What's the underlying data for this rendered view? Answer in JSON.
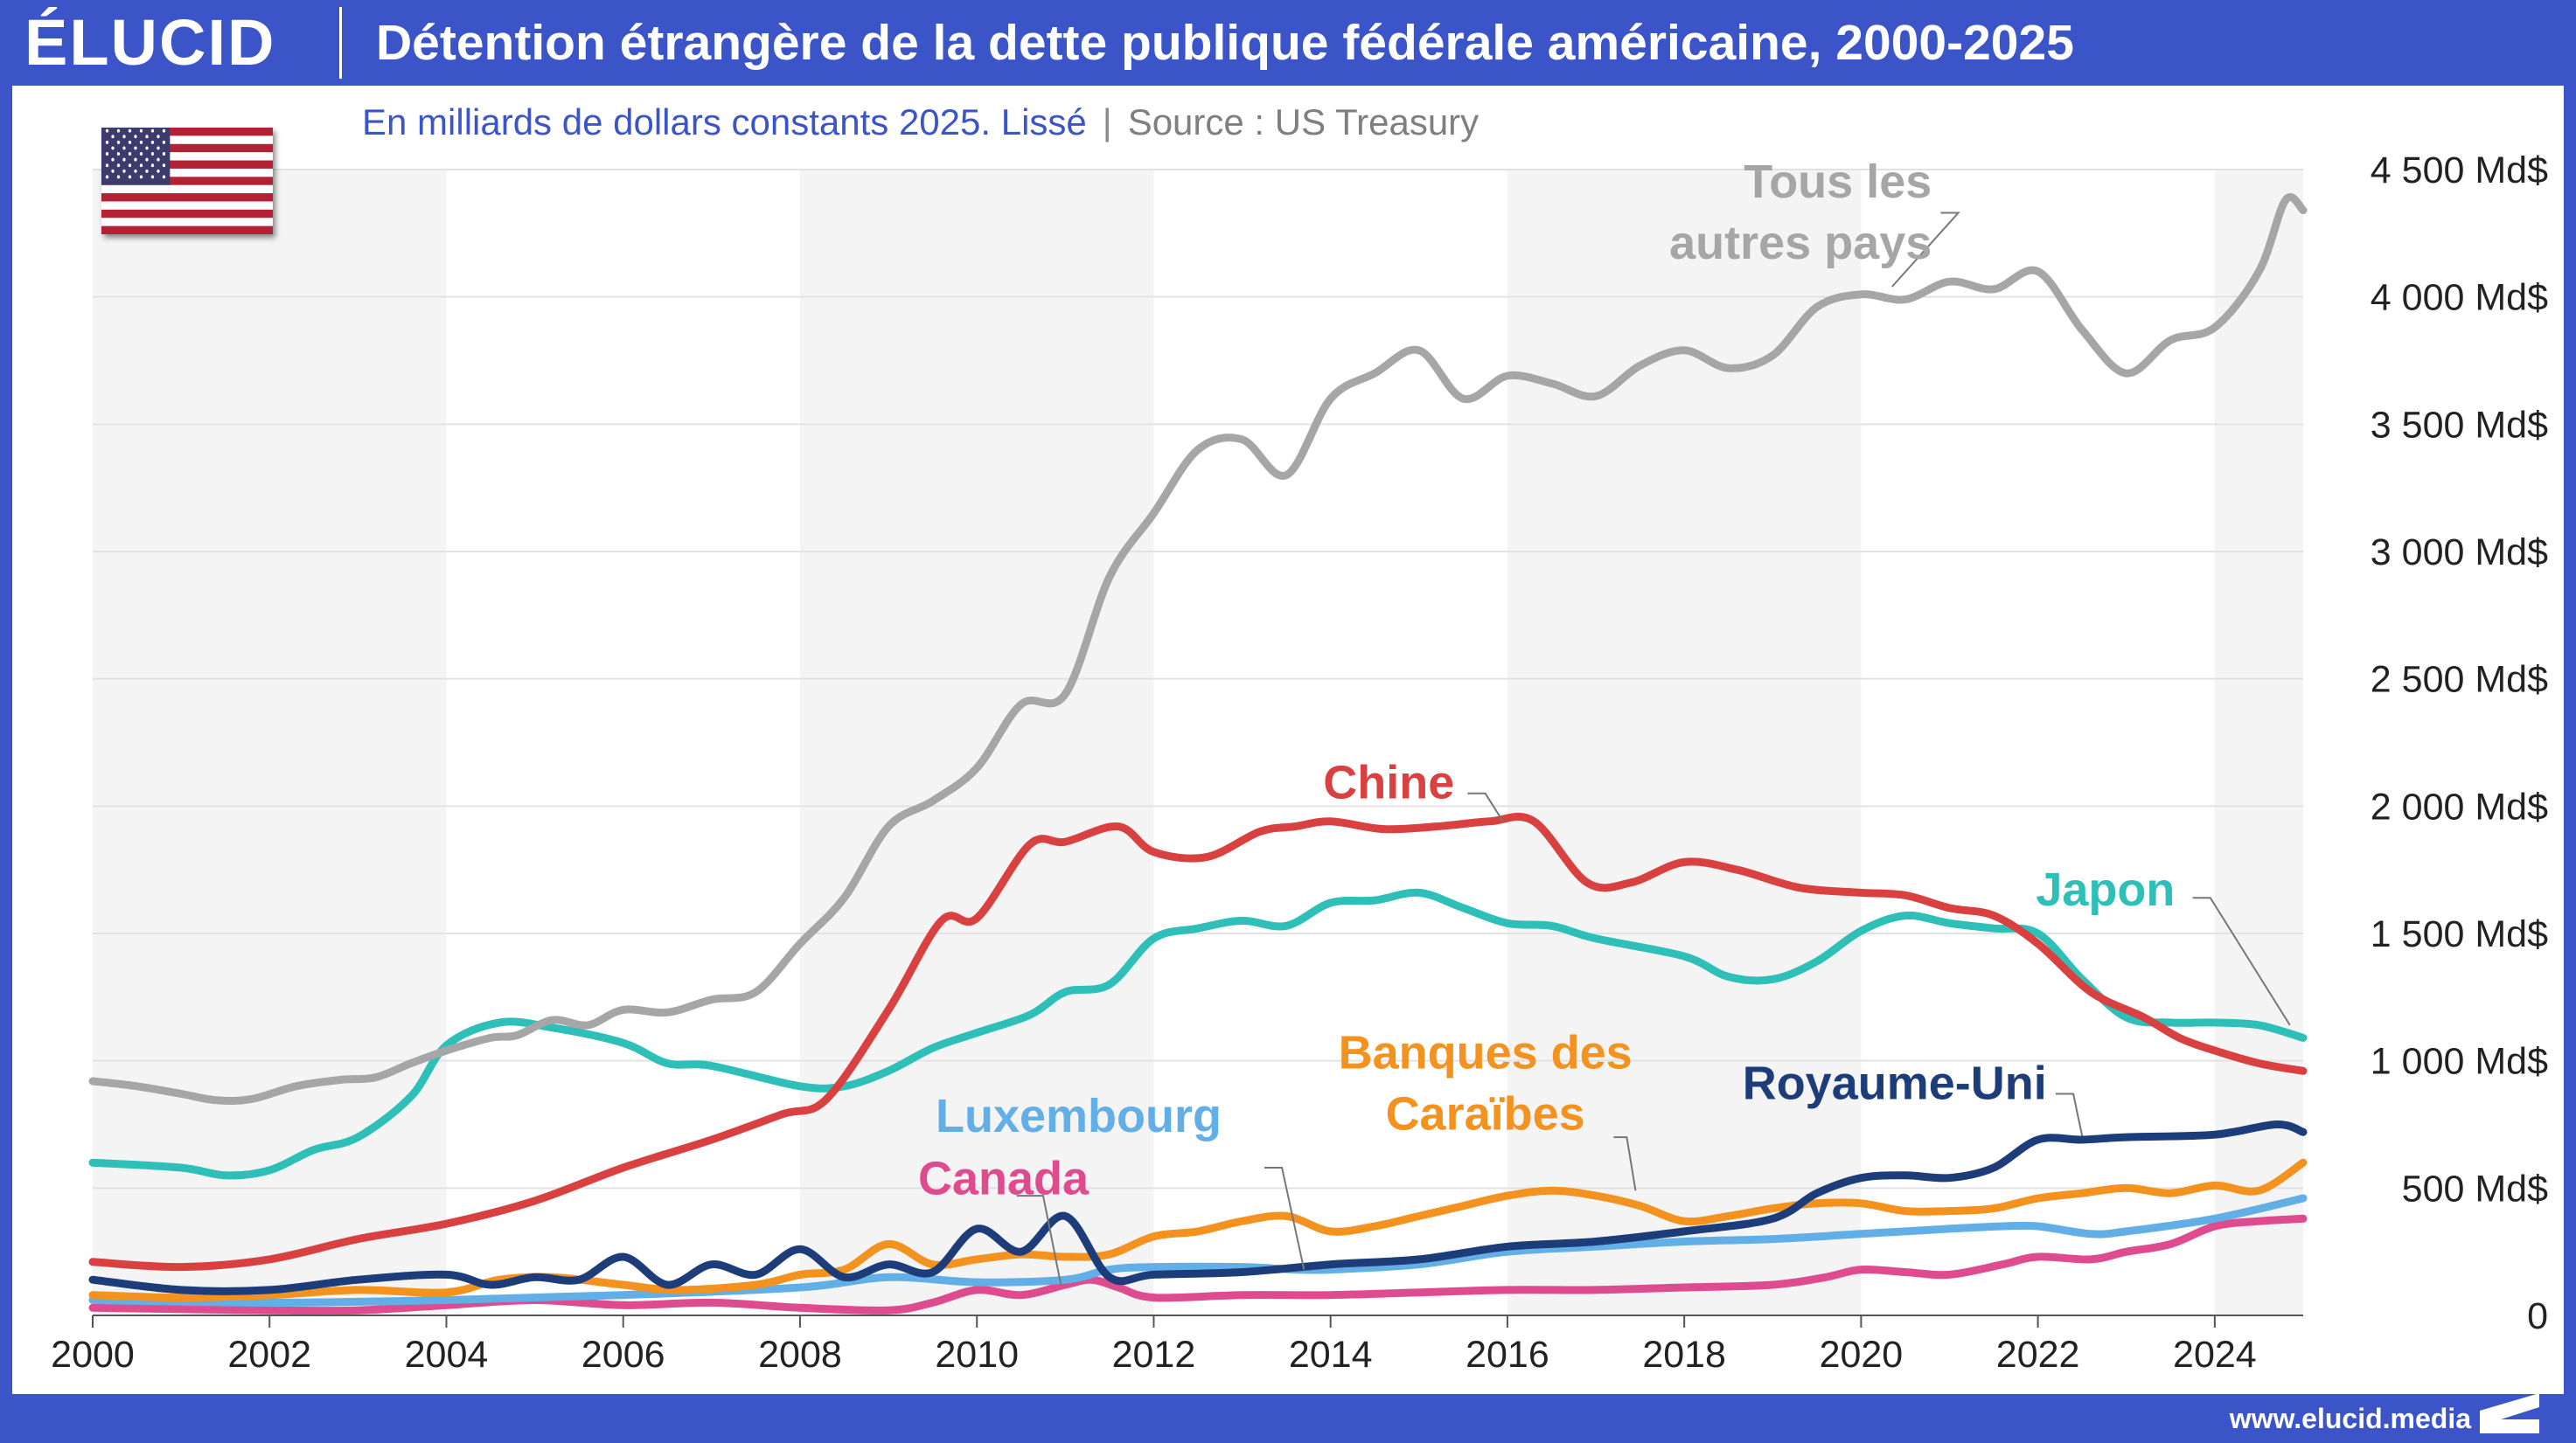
{
  "brand": {
    "logo_text": "ÉLUCID",
    "website": "www.elucid.media"
  },
  "header": {
    "title": "Détention étrangère de la dette publique fédérale américaine, 2000-2025",
    "subtitle": "En milliards de dollars constants 2025. Lissé",
    "source": "Source : US Treasury",
    "flag_icon": "us-flag-icon"
  },
  "colors": {
    "frame": "#3b55c8",
    "band": "#f4f4f4",
    "grid": "#e2e2e2",
    "axis_text": "#222222"
  },
  "chart_data": {
    "type": "line",
    "xlim": [
      2000,
      2025
    ],
    "ylim": [
      0,
      4500
    ],
    "grid": true,
    "x_ticks": [
      {
        "value": 2000,
        "label": "2000"
      },
      {
        "value": 2002,
        "label": "2002"
      },
      {
        "value": 2004,
        "label": "2004"
      },
      {
        "value": 2006,
        "label": "2006"
      },
      {
        "value": 2008,
        "label": "2008"
      },
      {
        "value": 2010,
        "label": "2010"
      },
      {
        "value": 2012,
        "label": "2012"
      },
      {
        "value": 2014,
        "label": "2014"
      },
      {
        "value": 2016,
        "label": "2016"
      },
      {
        "value": 2018,
        "label": "2018"
      },
      {
        "value": 2020,
        "label": "2020"
      },
      {
        "value": 2022,
        "label": "2022"
      },
      {
        "value": 2024,
        "label": "2024"
      }
    ],
    "y_ticks": [
      {
        "value": 0,
        "label": "0"
      },
      {
        "value": 500,
        "label": "500 Md$"
      },
      {
        "value": 1000,
        "label": "1 000 Md$"
      },
      {
        "value": 1500,
        "label": "1 500 Md$"
      },
      {
        "value": 2000,
        "label": "2 000 Md$"
      },
      {
        "value": 2500,
        "label": "2 500 Md$"
      },
      {
        "value": 3000,
        "label": "3 000 Md$"
      },
      {
        "value": 3500,
        "label": "3 500 Md$"
      },
      {
        "value": 4000,
        "label": "4 000 Md$"
      },
      {
        "value": 4500,
        "label": "4 500 Md$"
      }
    ],
    "shaded_bands": [
      [
        2000,
        2004
      ],
      [
        2008,
        2012
      ],
      [
        2016,
        2020
      ],
      [
        2024,
        2025
      ]
    ],
    "series": [
      {
        "name": "Tous les autres pays",
        "color": "#a6a6a6",
        "label_lines": [
          "Tous les",
          "autres pays"
        ],
        "x": [
          2000,
          2000.5,
          2001,
          2001.4,
          2001.8,
          2002.3,
          2002.8,
          2003.2,
          2003.6,
          2004,
          2004.5,
          2004.8,
          2005.2,
          2005.6,
          2006,
          2006.5,
          2007,
          2007.5,
          2008,
          2008.5,
          2009,
          2009.5,
          2010,
          2010.5,
          2011,
          2011.5,
          2012,
          2012.5,
          2013,
          2013.5,
          2014,
          2014.5,
          2015,
          2015.5,
          2016,
          2016.5,
          2017,
          2017.5,
          2018,
          2018.5,
          2019,
          2019.5,
          2020,
          2020.5,
          2021,
          2021.5,
          2022,
          2022.5,
          2023,
          2023.5,
          2024,
          2024.5,
          2024.8,
          2025
        ],
        "values": [
          920,
          900,
          870,
          845,
          850,
          900,
          925,
          935,
          990,
          1040,
          1090,
          1100,
          1160,
          1140,
          1200,
          1190,
          1240,
          1270,
          1460,
          1640,
          1920,
          2020,
          2150,
          2400,
          2440,
          2900,
          3150,
          3400,
          3440,
          3300,
          3600,
          3700,
          3790,
          3600,
          3690,
          3660,
          3610,
          3730,
          3790,
          3720,
          3770,
          3960,
          4010,
          3990,
          4060,
          4030,
          4100,
          3870,
          3700,
          3830,
          3880,
          4100,
          4380,
          4340
        ]
      },
      {
        "name": "Chine",
        "color": "#d94040",
        "x": [
          2000,
          2001,
          2002,
          2003,
          2004,
          2005,
          2006,
          2007,
          2007.8,
          2008.3,
          2009,
          2009.6,
          2010,
          2010.6,
          2011,
          2011.6,
          2012,
          2012.6,
          2013.2,
          2013.6,
          2014,
          2014.6,
          2015.2,
          2015.8,
          2016.3,
          2016.9,
          2017.4,
          2018,
          2018.6,
          2019.3,
          2020,
          2020.5,
          2021,
          2021.5,
          2022,
          2022.6,
          2023.2,
          2023.6,
          2024,
          2024.5,
          2025
        ],
        "values": [
          210,
          190,
          220,
          300,
          360,
          450,
          580,
          690,
          790,
          850,
          1200,
          1550,
          1560,
          1850,
          1860,
          1920,
          1820,
          1800,
          1900,
          1920,
          1940,
          1910,
          1920,
          1940,
          1940,
          1700,
          1700,
          1780,
          1750,
          1680,
          1660,
          1650,
          1600,
          1570,
          1460,
          1270,
          1170,
          1090,
          1040,
          990,
          960
        ]
      },
      {
        "name": "Japon",
        "color": "#2dbfb8",
        "x": [
          2000,
          2001,
          2001.5,
          2002,
          2002.5,
          2003,
          2003.6,
          2004,
          2004.6,
          2005.2,
          2006,
          2006.5,
          2007,
          2008,
          2008.5,
          2009,
          2009.5,
          2010,
          2010.6,
          2011,
          2011.5,
          2012,
          2012.5,
          2013,
          2013.5,
          2014,
          2014.5,
          2015,
          2015.5,
          2016,
          2016.5,
          2017,
          2018,
          2018.5,
          2019,
          2019.5,
          2020,
          2020.5,
          2021,
          2021.5,
          2022,
          2022.5,
          2023,
          2023.5,
          2024,
          2024.5,
          2025
        ],
        "values": [
          600,
          580,
          550,
          570,
          650,
          700,
          860,
          1060,
          1150,
          1130,
          1070,
          990,
          980,
          900,
          900,
          960,
          1050,
          1110,
          1180,
          1270,
          1300,
          1480,
          1520,
          1550,
          1530,
          1620,
          1630,
          1660,
          1600,
          1540,
          1530,
          1480,
          1410,
          1330,
          1320,
          1390,
          1510,
          1570,
          1540,
          1520,
          1500,
          1320,
          1170,
          1150,
          1150,
          1140,
          1090
        ]
      },
      {
        "name": "Royaume-Uni",
        "color": "#1c3c7a",
        "x": [
          2000,
          2001,
          2002,
          2003,
          2004,
          2004.5,
          2005,
          2005.5,
          2006,
          2006.5,
          2007,
          2007.5,
          2008,
          2008.5,
          2009,
          2009.5,
          2010,
          2010.5,
          2011,
          2011.5,
          2012,
          2013,
          2014,
          2015,
          2016,
          2017,
          2018,
          2019,
          2019.5,
          2020,
          2020.5,
          2021,
          2021.5,
          2022,
          2022.5,
          2023,
          2024,
          2024.7,
          2025
        ],
        "values": [
          140,
          100,
          100,
          140,
          160,
          120,
          150,
          140,
          230,
          120,
          200,
          160,
          260,
          150,
          200,
          170,
          340,
          250,
          390,
          150,
          160,
          170,
          200,
          220,
          270,
          290,
          330,
          380,
          480,
          540,
          550,
          540,
          580,
          690,
          690,
          700,
          710,
          750,
          720
        ]
      },
      {
        "name": "Banques des Caraïbes",
        "color": "#f3921e",
        "label_lines": [
          "Banques des",
          "Caraïbes"
        ],
        "x": [
          2000,
          2001,
          2002,
          2003,
          2004,
          2004.6,
          2005.2,
          2006,
          2006.6,
          2007.5,
          2008,
          2008.5,
          2009,
          2009.5,
          2010,
          2010.5,
          2011,
          2011.5,
          2012,
          2012.5,
          2013,
          2013.5,
          2014,
          2014.5,
          2015,
          2015.5,
          2016,
          2016.5,
          2017,
          2017.5,
          2018,
          2018.5,
          2019,
          2019.5,
          2020,
          2020.5,
          2021,
          2021.5,
          2022,
          2022.5,
          2023,
          2023.5,
          2024,
          2024.5,
          2025
        ],
        "values": [
          80,
          70,
          80,
          100,
          90,
          140,
          150,
          120,
          100,
          120,
          160,
          180,
          280,
          200,
          220,
          240,
          230,
          240,
          310,
          330,
          370,
          390,
          330,
          350,
          390,
          430,
          470,
          490,
          470,
          430,
          370,
          390,
          420,
          440,
          440,
          410,
          410,
          420,
          460,
          480,
          500,
          480,
          510,
          490,
          600
        ]
      },
      {
        "name": "Luxembourg",
        "color": "#62aee6",
        "x": [
          2000,
          2002,
          2004,
          2006,
          2008,
          2009,
          2010,
          2011,
          2011.5,
          2012,
          2013,
          2013.6,
          2014,
          2015,
          2016,
          2017,
          2018,
          2019,
          2020,
          2021,
          2021.6,
          2022,
          2022.6,
          2023,
          2024,
          2025
        ],
        "values": [
          60,
          50,
          60,
          80,
          110,
          150,
          130,
          140,
          180,
          190,
          190,
          180,
          180,
          200,
          250,
          270,
          290,
          300,
          320,
          340,
          350,
          350,
          320,
          330,
          380,
          460
        ]
      },
      {
        "name": "Canada",
        "color": "#de4b8e",
        "x": [
          2000,
          2002,
          2003,
          2004,
          2005,
          2006,
          2007,
          2008,
          2009,
          2009.5,
          2010,
          2010.5,
          2011,
          2011.3,
          2011.6,
          2012,
          2013,
          2014,
          2015,
          2016,
          2017,
          2018,
          2019,
          2019.6,
          2020,
          2020.5,
          2021,
          2021.6,
          2022,
          2022.6,
          2023,
          2023.5,
          2024,
          2024.5,
          2025
        ],
        "values": [
          30,
          20,
          20,
          40,
          60,
          40,
          50,
          30,
          20,
          50,
          100,
          80,
          120,
          140,
          110,
          70,
          80,
          80,
          90,
          100,
          100,
          110,
          120,
          150,
          180,
          170,
          160,
          200,
          230,
          220,
          250,
          280,
          350,
          370,
          380
        ]
      }
    ],
    "annotations": [
      {
        "series": "Tous les autres pays",
        "anchor": "end",
        "lines": [
          "Tous les",
          "autres pays"
        ],
        "lx": 2020.8,
        "ly": 4390,
        "leader": [
          [
            2020.9,
            4330
          ],
          [
            2021.1,
            4330
          ],
          [
            2020.35,
            4040
          ]
        ]
      },
      {
        "series": "Chine",
        "anchor": "end",
        "lines": [
          "Chine"
        ],
        "lx": 2015.4,
        "ly": 2030,
        "leader": [
          [
            2015.55,
            2050
          ],
          [
            2015.75,
            2050
          ],
          [
            2015.95,
            1940
          ]
        ]
      },
      {
        "series": "Japon",
        "anchor": "end",
        "lines": [
          "Japon"
        ],
        "lx": 2023.55,
        "ly": 1610,
        "leader": [
          [
            2023.75,
            1640
          ],
          [
            2023.95,
            1640
          ],
          [
            2024.85,
            1140
          ]
        ]
      },
      {
        "series": "Royaume-Uni",
        "anchor": "end",
        "lines": [
          "Royaume-Uni"
        ],
        "lx": 2022.1,
        "ly": 850,
        "leader": [
          [
            2022.2,
            870
          ],
          [
            2022.4,
            870
          ],
          [
            2022.5,
            705
          ]
        ]
      },
      {
        "series": "Banques des Caraïbes",
        "anchor": "middle",
        "lines": [
          "Banques des",
          "Caraïbes"
        ],
        "lx": 2015.75,
        "ly": 970,
        "leader": [
          [
            2017.2,
            700
          ],
          [
            2017.35,
            700
          ],
          [
            2017.45,
            490
          ]
        ]
      },
      {
        "series": "Luxembourg",
        "anchor": "middle",
        "lines": [
          "Luxembourg"
        ],
        "lx": 2011.15,
        "ly": 720,
        "leader": [
          [
            2013.25,
            580
          ],
          [
            2013.45,
            580
          ],
          [
            2013.7,
            180
          ]
        ]
      },
      {
        "series": "Canada",
        "anchor": "middle",
        "lines": [
          "Canada"
        ],
        "lx": 2010.3,
        "ly": 475,
        "leader": [
          [
            2010.45,
            470
          ],
          [
            2010.75,
            470
          ],
          [
            2010.95,
            120
          ]
        ]
      }
    ]
  }
}
